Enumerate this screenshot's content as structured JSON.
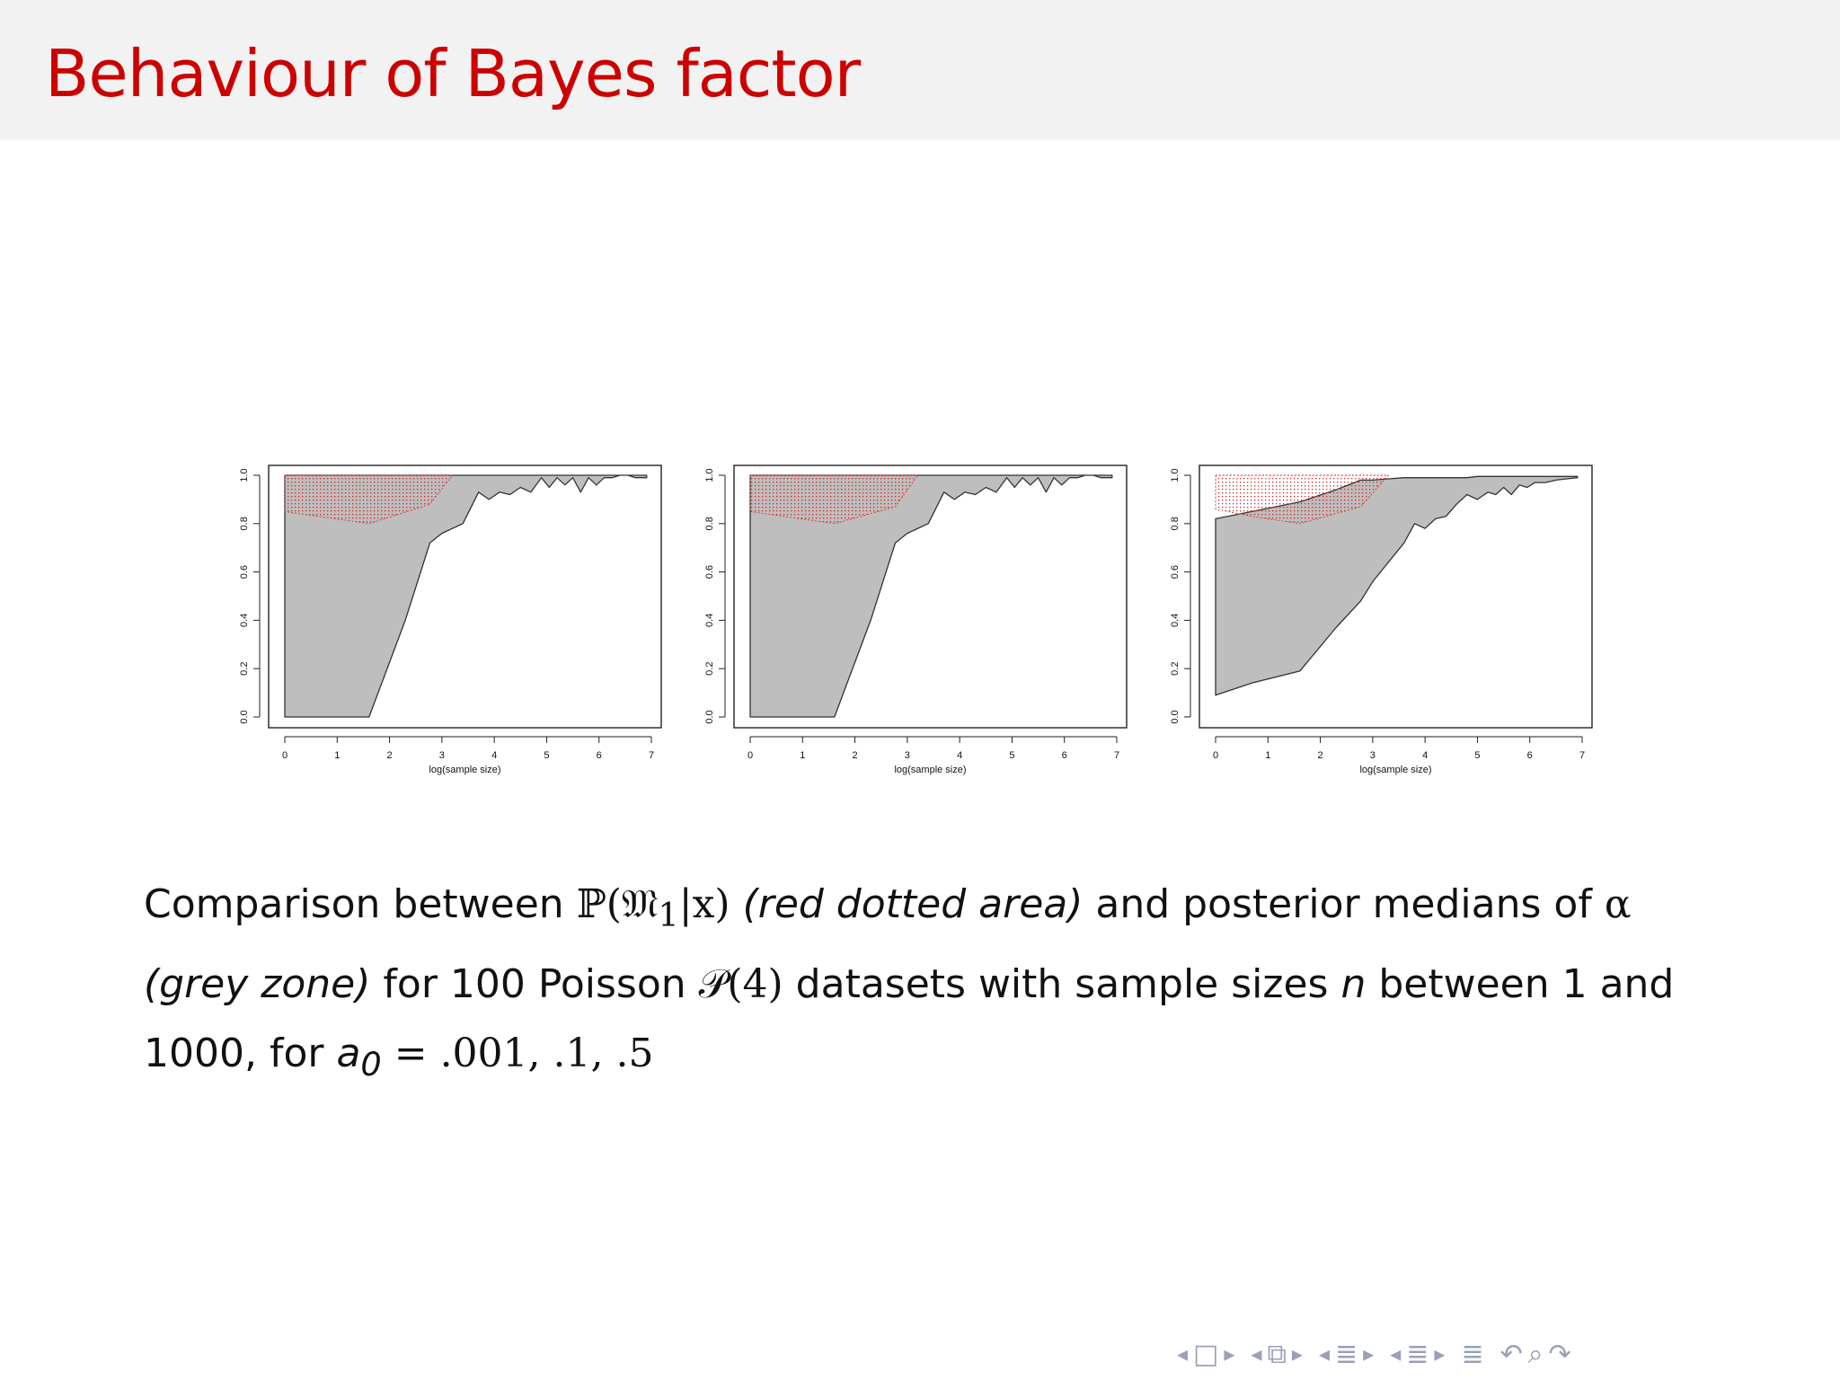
{
  "slide": {
    "title": "Behaviour of Bayes factor"
  },
  "caption": {
    "t1": "Comparison between ",
    "m1": "ℙ(𝔐",
    "m1sub": "1",
    "m1b": "|x)",
    "i1": "(red dotted area)",
    "t2": " and posterior medians of ",
    "m2": "α",
    "i2": "(grey zone)",
    "t3": " for 100 Poisson ",
    "m3": "𝒫(4)",
    "t4": " datasets with sample sizes ",
    "m4": "n",
    "t5": " between 1 and 1000, for ",
    "m5": "a",
    "m5sub": "0",
    "m5b": " = .001, .1, .5"
  },
  "colors": {
    "title": "#cc0000",
    "grey_zone": "#bebebe",
    "red_dots": "#dd2222",
    "nav_icons": "#9aa0b8"
  },
  "nav_icons": [
    "frame-prev-icon",
    "frame-icon",
    "frame-next-icon",
    "subsection-prev-icon",
    "subsection-icon",
    "subsection-next-icon",
    "section-prev-icon",
    "section-icon",
    "section-next-icon",
    "part-prev-icon",
    "part-icon",
    "part-next-icon",
    "toc-icon",
    "back-icon",
    "search-icon",
    "forward-icon"
  ],
  "chart_data": [
    {
      "type": "area",
      "xlabel": "log(sample size)",
      "xlim": [
        0,
        7
      ],
      "ylim": [
        0,
        1
      ],
      "xticks": [
        "0",
        "1",
        "2",
        "3",
        "4",
        "5",
        "6",
        "7"
      ],
      "yticks": [
        "0.0",
        "0.2",
        "0.4",
        "0.6",
        "0.8",
        "1.0"
      ],
      "series": [
        {
          "fill": "grey",
          "x": [
            0,
            0.69,
            1.61,
            2.3,
            2.77,
            3.0,
            3.4,
            3.7,
            3.9,
            4.1,
            4.3,
            4.5,
            4.7,
            4.9,
            5.05,
            5.2,
            5.35,
            5.5,
            5.65,
            5.8,
            5.95,
            6.1,
            6.25,
            6.4,
            6.55,
            6.7,
            6.91
          ],
          "upper": [
            1.0,
            1.0,
            1.0,
            1.0,
            1.0,
            1.0,
            1.0,
            1.0,
            1.0,
            1.0,
            1.0,
            1.0,
            1.0,
            1.0,
            1.0,
            1.0,
            1.0,
            1.0,
            1.0,
            1.0,
            1.0,
            1.0,
            1.0,
            1.0,
            1.0,
            1.0,
            1.0
          ],
          "lower": [
            0.0,
            0.0,
            0.0,
            0.4,
            0.72,
            0.76,
            0.8,
            0.93,
            0.9,
            0.93,
            0.92,
            0.95,
            0.93,
            0.99,
            0.95,
            0.99,
            0.96,
            0.99,
            0.93,
            0.99,
            0.96,
            0.99,
            0.99,
            1.0,
            1.0,
            0.99,
            0.99
          ]
        },
        {
          "fill": "red-dotted",
          "x": [
            0,
            1.61,
            2.77,
            3.2
          ],
          "upper": [
            1.0,
            1.0,
            1.0,
            1.0
          ],
          "lower": [
            0.85,
            0.8,
            0.88,
            1.0
          ]
        }
      ]
    },
    {
      "type": "area",
      "xlabel": "log(sample size)",
      "xlim": [
        0,
        7
      ],
      "ylim": [
        0,
        1
      ],
      "xticks": [
        "0",
        "1",
        "2",
        "3",
        "4",
        "5",
        "6",
        "7"
      ],
      "yticks": [
        "0.0",
        "0.2",
        "0.4",
        "0.6",
        "0.8",
        "1.0"
      ],
      "series": [
        {
          "fill": "grey",
          "x": [
            0,
            0.69,
            1.61,
            2.3,
            2.77,
            3.0,
            3.4,
            3.7,
            3.9,
            4.1,
            4.3,
            4.5,
            4.7,
            4.9,
            5.05,
            5.2,
            5.35,
            5.5,
            5.65,
            5.8,
            5.95,
            6.1,
            6.25,
            6.4,
            6.55,
            6.7,
            6.91
          ],
          "upper": [
            1.0,
            1.0,
            1.0,
            1.0,
            1.0,
            1.0,
            1.0,
            1.0,
            1.0,
            1.0,
            1.0,
            1.0,
            1.0,
            1.0,
            1.0,
            1.0,
            1.0,
            1.0,
            1.0,
            1.0,
            1.0,
            1.0,
            1.0,
            1.0,
            1.0,
            1.0,
            1.0
          ],
          "lower": [
            0.0,
            0.0,
            0.0,
            0.4,
            0.72,
            0.76,
            0.8,
            0.93,
            0.9,
            0.93,
            0.92,
            0.95,
            0.93,
            0.99,
            0.95,
            0.99,
            0.96,
            0.99,
            0.93,
            0.99,
            0.96,
            0.99,
            0.99,
            1.0,
            1.0,
            0.99,
            0.99
          ]
        },
        {
          "fill": "red-dotted",
          "x": [
            0,
            1.61,
            2.77,
            3.2
          ],
          "upper": [
            1.0,
            1.0,
            1.0,
            1.0
          ],
          "lower": [
            0.85,
            0.8,
            0.87,
            1.0
          ]
        }
      ]
    },
    {
      "type": "area",
      "xlabel": "log(sample size)",
      "xlim": [
        0,
        7
      ],
      "ylim": [
        0,
        1
      ],
      "xticks": [
        "0",
        "1",
        "2",
        "3",
        "4",
        "5",
        "6",
        "7"
      ],
      "yticks": [
        "0.0",
        "0.2",
        "0.4",
        "0.6",
        "0.8",
        "1.0"
      ],
      "series": [
        {
          "fill": "grey",
          "x": [
            0,
            0.69,
            1.61,
            2.3,
            2.77,
            3.0,
            3.3,
            3.6,
            3.8,
            4.0,
            4.2,
            4.4,
            4.6,
            4.8,
            5.0,
            5.2,
            5.35,
            5.5,
            5.65,
            5.8,
            5.95,
            6.1,
            6.3,
            6.5,
            6.7,
            6.91
          ],
          "upper": [
            0.82,
            0.85,
            0.89,
            0.94,
            0.98,
            0.98,
            0.985,
            0.99,
            0.99,
            0.99,
            0.99,
            0.99,
            0.99,
            0.99,
            0.995,
            0.995,
            0.995,
            0.995,
            0.995,
            0.995,
            0.995,
            0.995,
            0.995,
            0.995,
            0.995,
            0.995
          ],
          "lower": [
            0.09,
            0.14,
            0.19,
            0.37,
            0.48,
            0.56,
            0.64,
            0.72,
            0.8,
            0.78,
            0.82,
            0.83,
            0.88,
            0.92,
            0.9,
            0.93,
            0.92,
            0.95,
            0.92,
            0.96,
            0.95,
            0.97,
            0.97,
            0.98,
            0.985,
            0.99
          ]
        },
        {
          "fill": "red-dotted",
          "x": [
            0,
            0.69,
            1.61,
            2.77,
            3.3
          ],
          "upper": [
            1.0,
            1.0,
            1.0,
            1.0,
            1.0
          ],
          "lower": [
            0.86,
            0.83,
            0.8,
            0.87,
            1.0
          ]
        }
      ]
    }
  ]
}
